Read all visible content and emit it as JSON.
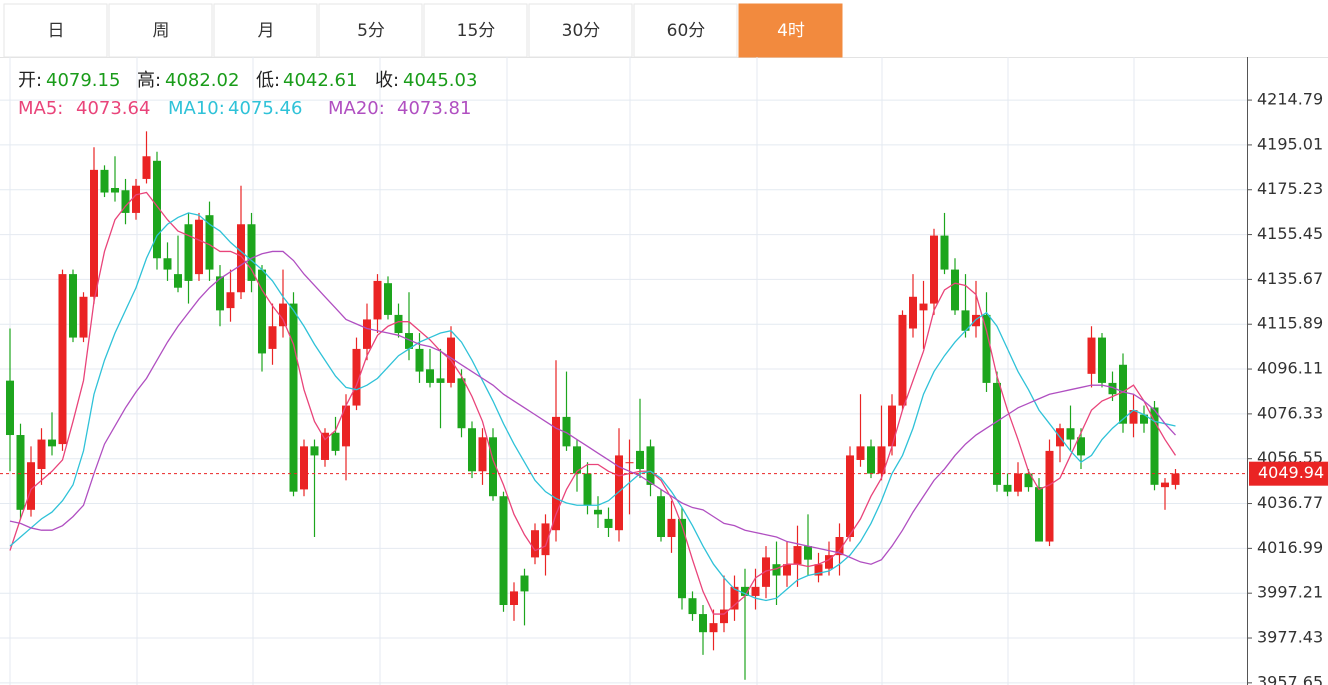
{
  "tabs": [
    "日",
    "周",
    "月",
    "5分",
    "15分",
    "30分",
    "60分",
    "4时"
  ],
  "active_tab": 7,
  "chart_data": {
    "type": "candlestick",
    "info": [
      {
        "label": "开:",
        "value": 4079.15
      },
      {
        "label": "高:",
        "value": 4082.02
      },
      {
        "label": "低:",
        "value": 4042.61
      },
      {
        "label": "收:",
        "value": 4045.03
      }
    ],
    "last_price": 4049.94,
    "up_color": "#ea2424",
    "down_color": "#1da51d",
    "grid": true,
    "ylim": [
      3956.7,
      4233.8
    ],
    "yticks": [
      4214.79,
      4195.01,
      4175.23,
      4155.45,
      4135.67,
      4115.89,
      4096.11,
      4076.33,
      4056.55,
      4036.77,
      4016.99,
      3997.21,
      3977.43,
      3957.65
    ],
    "open": [
      4091,
      4067,
      4034,
      4052,
      4065,
      4063,
      4138,
      4110,
      4128,
      4184,
      4176,
      4175,
      4165,
      4180,
      4188,
      4145,
      4138,
      4160,
      4138,
      4164,
      4137,
      4123,
      4130,
      4160,
      4140,
      4105,
      4115,
      4125,
      4043,
      4062,
      4056,
      4068,
      4062,
      4080,
      4105,
      4118,
      4134,
      4120,
      4112,
      4105,
      4096,
      4092,
      4090,
      4092,
      4070,
      4051,
      4066,
      4040,
      3992,
      4005,
      4013,
      4014,
      4025,
      4075,
      4062,
      4050,
      4034,
      4030,
      4025,
      4055,
      4060,
      4062,
      4040,
      4022,
      4030,
      3995,
      3988,
      3980,
      3984,
      3990,
      4000,
      3996,
      4000,
      4010,
      4005,
      4010,
      4018,
      4005,
      4008,
      4014,
      4022,
      4056,
      4062,
      4050,
      4062,
      4080,
      4114,
      4122,
      4125,
      4155,
      4140,
      4122,
      4115,
      4120,
      4090,
      4045,
      4042,
      4050,
      4044,
      4020,
      4062,
      4070,
      4066,
      4094,
      4110,
      4090,
      4098,
      4072,
      4076,
      4079.15,
      4044,
      4045
    ],
    "high": [
      4114,
      4072,
      4062,
      4070,
      4077,
      4140,
      4140,
      4130,
      4194,
      4186,
      4190,
      4180,
      4180,
      4201,
      4192,
      4152,
      4155,
      4165,
      4165,
      4170,
      4142,
      4140,
      4177,
      4165,
      4142,
      4125,
      4140,
      4130,
      4065,
      4065,
      4070,
      4075,
      4085,
      4110,
      4125,
      4138,
      4137,
      4125,
      4130,
      4112,
      4105,
      4105,
      4115,
      4096,
      4073,
      4070,
      4070,
      4042,
      4002,
      4008,
      4028,
      4032,
      4100,
      4095,
      4065,
      4055,
      4040,
      4035,
      4070,
      4065,
      4083,
      4065,
      4043,
      4038,
      4035,
      3998,
      3992,
      3990,
      4005,
      4005,
      4008,
      4008,
      4018,
      4020,
      4020,
      4027,
      4032,
      4015,
      4020,
      4028,
      4062,
      4085,
      4065,
      4080,
      4085,
      4122,
      4138,
      4135,
      4158,
      4165,
      4145,
      4138,
      4135,
      4130,
      4095,
      4050,
      4055,
      4052,
      4048,
      4065,
      4072,
      4080,
      4070,
      4115,
      4112,
      4095,
      4103,
      4085,
      4080,
      4082.02,
      4048,
      4052
    ],
    "low": [
      4051,
      4030,
      4031,
      4045,
      4058,
      4060,
      4108,
      4108,
      4125,
      4172,
      4170,
      4160,
      4162,
      4178,
      4140,
      4135,
      4130,
      4125,
      4135,
      4135,
      4115,
      4117,
      4127,
      4130,
      4095,
      4098,
      4110,
      4040,
      4040,
      4022,
      4053,
      4058,
      4047,
      4078,
      4100,
      4112,
      4118,
      4110,
      4100,
      4090,
      4088,
      4070,
      4088,
      4066,
      4048,
      4045,
      4038,
      3989,
      3985,
      3983,
      4010,
      4005,
      4020,
      4060,
      4042,
      4032,
      4026,
      4022,
      4020,
      4032,
      4048,
      4040,
      4020,
      4015,
      3990,
      3985,
      3970,
      3972,
      3980,
      3985,
      3959,
      3990,
      3995,
      3992,
      4000,
      4000,
      4005,
      4002,
      4005,
      4005,
      4020,
      4053,
      4048,
      4047,
      4058,
      4078,
      4110,
      4105,
      4120,
      4138,
      4120,
      4110,
      4110,
      4086,
      4042,
      4040,
      4040,
      4042,
      4020,
      4018,
      4055,
      4060,
      4052,
      4088,
      4088,
      4082,
      4068,
      4066,
      4068,
      4042.61,
      4034,
      4043
    ],
    "close": [
      4067,
      4034,
      4055,
      4065,
      4062,
      4138,
      4110,
      4128,
      4184,
      4174,
      4174,
      4165,
      4177,
      4190,
      4145,
      4140,
      4132,
      4135,
      4162,
      4140,
      4122,
      4130,
      4160,
      4135,
      4103,
      4115,
      4125,
      4042,
      4062,
      4058,
      4068,
      4060,
      4080,
      4105,
      4118,
      4135,
      4120,
      4112,
      4105,
      4095,
      4090,
      4090,
      4110,
      4070,
      4051,
      4066,
      4040,
      3992,
      3998,
      3998,
      4025,
      4028,
      4075,
      4062,
      4050,
      4036,
      4032,
      4026,
      4058,
      4055,
      4052,
      4045,
      4022,
      4030,
      3995,
      3988,
      3980,
      3984,
      3990,
      4000,
      3996,
      4000,
      4013,
      4005,
      4010,
      4018,
      4012,
      4010,
      4014,
      4022,
      4058,
      4062,
      4050,
      4062,
      4080,
      4120,
      4128,
      4125,
      4155,
      4140,
      4122,
      4113,
      4120,
      4090,
      4045,
      4042,
      4050,
      4044,
      4020,
      4060,
      4070,
      4065,
      4058,
      4110,
      4090,
      4085,
      4072,
      4078,
      4072,
      4045.03,
      4046,
      4050
    ],
    "series": [
      {
        "name": "MA5:",
        "color": "#e9447a",
        "current": 4073.64,
        "values": [
          4016,
          4030,
          4043,
          4047,
          4051,
          4056,
          4073,
          4091,
          4126,
          4148,
          4162,
          4168,
          4173,
          4174,
          4168,
          4162,
          4157,
          4155,
          4153,
          4151,
          4148,
          4148,
          4146,
          4140,
          4131,
          4124,
          4118,
          4107,
          4087,
          4073,
          4065,
          4069,
          4080,
          4089,
          4102,
          4111,
          4115,
          4117,
          4117,
          4113,
          4109,
          4104,
          4100,
          4093,
          4084,
          4073,
          4056,
          4045,
          4032,
          4023,
          4016,
          4018,
          4032,
          4043,
          4051,
          4054,
          4054,
          4051,
          4049,
          4050,
          4051,
          4051,
          4047,
          4039,
          4027,
          4012,
          3998,
          3988,
          3988,
          3992,
          3996,
          4004,
          4007,
          4008,
          4010,
          4010,
          4009,
          4010,
          4012,
          4016,
          4023,
          4030,
          4040,
          4048,
          4062,
          4078,
          4091,
          4104,
          4122,
          4131,
          4134,
          4133,
          4129,
          4113,
          4093,
          4078,
          4065,
          4051,
          4043,
          4045,
          4048,
          4058,
          4068,
          4078,
          4082,
          4084,
          4086,
          4089,
          4082,
          4073,
          4065,
          4058
        ]
      },
      {
        "name": "MA10:",
        "color": "#2fc2d8",
        "current": 4075.46,
        "values": [
          4018,
          4022,
          4026,
          4030,
          4033,
          4038,
          4045,
          4060,
          4085,
          4100,
          4112,
          4122,
          4132,
          4145,
          4155,
          4160,
          4163,
          4165,
          4164,
          4160,
          4157,
          4152,
          4148,
          4144,
          4140,
          4135,
          4128,
          4122,
          4115,
          4107,
          4100,
          4093,
          4088,
          4087,
          4089,
          4092,
          4097,
          4102,
          4105,
          4108,
          4110,
          4112,
          4113,
          4108,
          4100,
          4091,
          4082,
          4072,
          4063,
          4055,
          4047,
          4042,
          4039,
          4037,
          4036,
          4036,
          4036,
          4038,
          4042,
          4046,
          4050,
          4051,
          4048,
          4042,
          4035,
          4027,
          4018,
          4010,
          4004,
          3999,
          3997,
          3995,
          3994,
          3995,
          3999,
          4003,
          4005,
          4006,
          4007,
          4010,
          4014,
          4020,
          4028,
          4038,
          4050,
          4058,
          4070,
          4085,
          4095,
          4102,
          4108,
          4113,
          4118,
          4121,
          4115,
          4105,
          4095,
          4087,
          4078,
          4072,
          4066,
          4060,
          4055,
          4058,
          4065,
          4070,
          4074,
          4078,
          4076,
          4073,
          4072,
          4071
        ]
      },
      {
        "name": "MA20:",
        "color": "#b04fc1",
        "current": 4073.81,
        "values": [
          4029,
          4028,
          4026,
          4025,
          4025,
          4027,
          4031,
          4036,
          4050,
          4063,
          4071,
          4079,
          4086,
          4092,
          4100,
          4108,
          4115,
          4121,
          4127,
          4132,
          4136,
          4139,
          4142,
          4145,
          4147,
          4148,
          4148,
          4144,
          4138,
          4133,
          4128,
          4123,
          4118,
          4116,
          4114,
          4113,
          4112,
          4111,
          4109,
          4107,
          4106,
          4104,
          4101,
          4098,
          4095,
          4092,
          4089,
          4085,
          4082,
          4079,
          4076,
          4073,
          4070,
          4068,
          4065,
          4062,
          4059,
          4056,
          4053,
          4051,
          4049,
          4046,
          4043,
          4040,
          4037,
          4035,
          4034,
          4031,
          4028,
          4027,
          4025,
          4024,
          4023,
          4022,
          4020,
          4019,
          4018,
          4017,
          4016,
          4015,
          4013,
          4011,
          4010,
          4012,
          4018,
          4025,
          4033,
          4040,
          4047,
          4052,
          4058,
          4063,
          4067,
          4070,
          4073,
          4076,
          4079,
          4081,
          4083,
          4085,
          4086,
          4087,
          4088,
          4089,
          4089,
          4088,
          4086,
          4085,
          4082,
          4078,
          4072,
          4067
        ]
      }
    ]
  }
}
